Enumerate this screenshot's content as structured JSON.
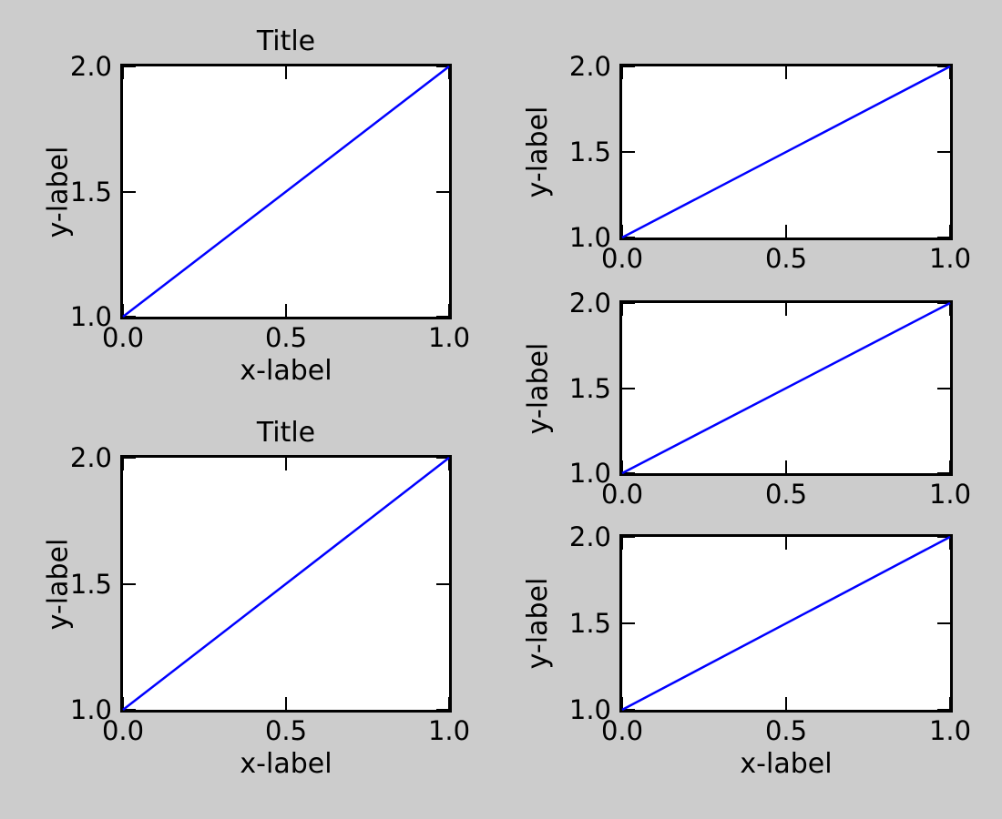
{
  "figure": {
    "background_color": "#cccccc",
    "axes_background_color": "#ffffff",
    "frame_color": "#000000",
    "line_color": "#0000ff",
    "text_color": "#000000"
  },
  "chart_data": [
    {
      "position": "left-top",
      "type": "line",
      "title": "Title",
      "xlabel": "x-label",
      "ylabel": "y-label",
      "x": [
        0.0,
        1.0
      ],
      "y": [
        1.0,
        2.0
      ],
      "xlim": [
        0.0,
        1.0
      ],
      "ylim": [
        1.0,
        2.0
      ],
      "xtick_values": [
        0.0,
        0.5,
        1.0
      ],
      "xtick_labels": [
        "0.0",
        "0.5",
        "1.0"
      ],
      "ytick_values": [
        1.0,
        1.5,
        2.0
      ],
      "ytick_labels": [
        "1.0",
        "1.5",
        "2.0"
      ],
      "grid": false,
      "legend": null
    },
    {
      "position": "left-bottom",
      "type": "line",
      "title": "Title",
      "xlabel": "x-label",
      "ylabel": "y-label",
      "x": [
        0.0,
        1.0
      ],
      "y": [
        1.0,
        2.0
      ],
      "xlim": [
        0.0,
        1.0
      ],
      "ylim": [
        1.0,
        2.0
      ],
      "xtick_values": [
        0.0,
        0.5,
        1.0
      ],
      "xtick_labels": [
        "0.0",
        "0.5",
        "1.0"
      ],
      "ytick_values": [
        1.0,
        1.5,
        2.0
      ],
      "ytick_labels": [
        "1.0",
        "1.5",
        "2.0"
      ],
      "grid": false,
      "legend": null
    },
    {
      "position": "right-top",
      "type": "line",
      "title": null,
      "xlabel": null,
      "ylabel": "y-label",
      "x": [
        0.0,
        1.0
      ],
      "y": [
        1.0,
        2.0
      ],
      "xlim": [
        0.0,
        1.0
      ],
      "ylim": [
        1.0,
        2.0
      ],
      "xtick_values": [
        0.0,
        0.5,
        1.0
      ],
      "xtick_labels": [
        "0.0",
        "0.5",
        "1.0"
      ],
      "ytick_values": [
        1.0,
        1.5,
        2.0
      ],
      "ytick_labels": [
        "1.0",
        "1.5",
        "2.0"
      ],
      "grid": false,
      "legend": null
    },
    {
      "position": "right-middle",
      "type": "line",
      "title": null,
      "xlabel": null,
      "ylabel": "y-label",
      "x": [
        0.0,
        1.0
      ],
      "y": [
        1.0,
        2.0
      ],
      "xlim": [
        0.0,
        1.0
      ],
      "ylim": [
        1.0,
        2.0
      ],
      "xtick_values": [
        0.0,
        0.5,
        1.0
      ],
      "xtick_labels": [
        "0.0",
        "0.5",
        "1.0"
      ],
      "ytick_values": [
        1.0,
        1.5,
        2.0
      ],
      "ytick_labels": [
        "1.0",
        "1.5",
        "2.0"
      ],
      "grid": false,
      "legend": null
    },
    {
      "position": "right-bottom",
      "type": "line",
      "title": null,
      "xlabel": "x-label",
      "ylabel": "y-label",
      "x": [
        0.0,
        1.0
      ],
      "y": [
        1.0,
        2.0
      ],
      "xlim": [
        0.0,
        1.0
      ],
      "ylim": [
        1.0,
        2.0
      ],
      "xtick_values": [
        0.0,
        0.5,
        1.0
      ],
      "xtick_labels": [
        "0.0",
        "0.5",
        "1.0"
      ],
      "ytick_values": [
        1.0,
        1.5,
        2.0
      ],
      "ytick_labels": [
        "1.0",
        "1.5",
        "2.0"
      ],
      "grid": false,
      "legend": null
    }
  ]
}
